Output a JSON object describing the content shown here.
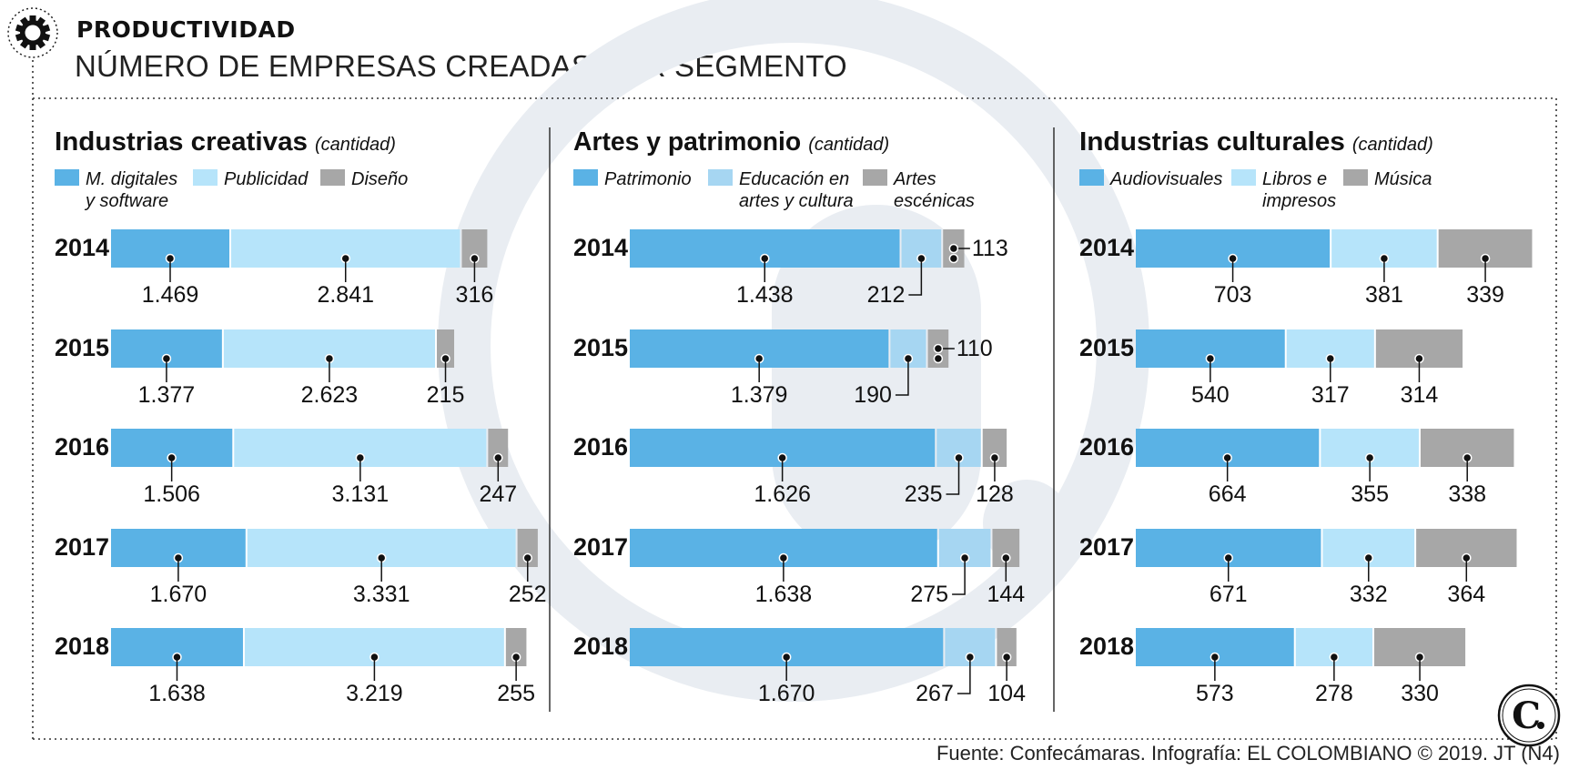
{
  "header": {
    "kicker": "PRODUCTIVIDAD",
    "title": "NÚMERO DE EMPRESAS CREADAS POR SEGMENTO"
  },
  "source": "Fuente: Confecámaras. Infografía: EL COLOMBIANO © 2019. JT (N4)",
  "colors": {
    "dark_blue": "#5ab2e5",
    "light_blue": "#b6e4fa",
    "mid_blue": "#a6d6f2",
    "gray": "#a7a7a7",
    "background_logo": "#e9edf2"
  },
  "icons": [
    "gear-badge-icon",
    "el-colombiano-logo-icon"
  ],
  "chart_data": [
    {
      "type": "bar",
      "stacked": true,
      "orientation": "horizontal",
      "title": "Industrias creativas",
      "subtitle": "(cantidad)",
      "categories": [
        "2014",
        "2015",
        "2016",
        "2017",
        "2018"
      ],
      "legend_labels": [
        "M. digitales\ny software",
        "Publicidad",
        "Diseño"
      ],
      "legend_position": "top",
      "series": [
        {
          "name": "M. digitales y software",
          "values": [
            1469,
            1377,
            1506,
            1670,
            1638
          ],
          "labels": [
            "1.469",
            "1.377",
            "1.506",
            "1.670",
            "1.638"
          ],
          "color": "#5ab2e5"
        },
        {
          "name": "Publicidad",
          "values": [
            2841,
            2623,
            3131,
            3331,
            3219
          ],
          "labels": [
            "2.841",
            "2.623",
            "3.131",
            "3.331",
            "3.219"
          ],
          "color": "#b6e4fa"
        },
        {
          "name": "Diseño",
          "values": [
            316,
            215,
            247,
            252,
            255
          ],
          "labels": [
            "316",
            "215",
            "247",
            "252",
            "255"
          ],
          "color": "#a7a7a7"
        }
      ]
    },
    {
      "type": "bar",
      "stacked": true,
      "orientation": "horizontal",
      "title": "Artes y patrimonio",
      "subtitle": "(cantidad)",
      "categories": [
        "2014",
        "2015",
        "2016",
        "2017",
        "2018"
      ],
      "legend_labels": [
        "Patrimonio",
        "Educación en\nartes y cultura",
        "Artes\nescénicas"
      ],
      "legend_position": "top",
      "series": [
        {
          "name": "Patrimonio",
          "values": [
            1438,
            1379,
            1626,
            1638,
            1670
          ],
          "labels": [
            "1.438",
            "1.379",
            "1.626",
            "1.638",
            "1.670"
          ],
          "color": "#5ab2e5"
        },
        {
          "name": "Educación en artes y cultura",
          "values": [
            212,
            190,
            235,
            275,
            267
          ],
          "labels": [
            "212",
            "190",
            "235",
            "275",
            "267"
          ],
          "color": "#a6d6f2"
        },
        {
          "name": "Artes escénicas",
          "values": [
            113,
            110,
            128,
            144,
            104
          ],
          "labels": [
            "113",
            "110",
            "128",
            "144",
            "104"
          ],
          "color": "#a7a7a7"
        }
      ]
    },
    {
      "type": "bar",
      "stacked": true,
      "orientation": "horizontal",
      "title": "Industrias culturales",
      "subtitle": "(cantidad)",
      "categories": [
        "2014",
        "2015",
        "2016",
        "2017",
        "2018"
      ],
      "legend_labels": [
        "Audiovisuales",
        "Libros e\nimpresos",
        "Música"
      ],
      "legend_position": "top",
      "series": [
        {
          "name": "Audiovisuales",
          "values": [
            703,
            540,
            664,
            671,
            573
          ],
          "labels": [
            "703",
            "540",
            "664",
            "671",
            "573"
          ],
          "color": "#5ab2e5"
        },
        {
          "name": "Libros e impresos",
          "values": [
            381,
            317,
            355,
            332,
            278
          ],
          "labels": [
            "381",
            "317",
            "355",
            "332",
            "278"
          ],
          "color": "#b6e4fa"
        },
        {
          "name": "Música",
          "values": [
            339,
            314,
            338,
            364,
            330
          ],
          "labels": [
            "339",
            "314",
            "338",
            "364",
            "330"
          ],
          "color": "#a7a7a7"
        }
      ]
    }
  ]
}
